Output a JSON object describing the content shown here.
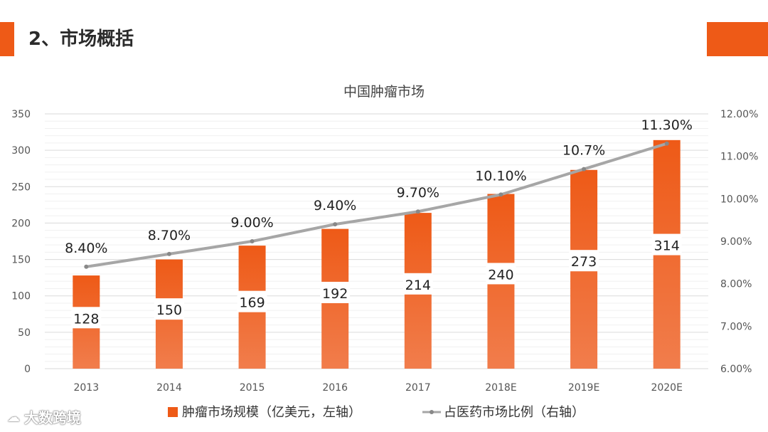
{
  "slide": {
    "title": "2、市场概括"
  },
  "watermark": {
    "icon": "cloud-logo-icon",
    "text": "大数跨境"
  },
  "colors": {
    "accent": "#ee5a17",
    "bar_top": "#ee5a17",
    "bar_bottom": "#f17d4c",
    "line": "#a6a6a6",
    "grid": "#e3e3e3"
  },
  "chart_data": {
    "type": "bar",
    "title": "中国肿瘤市场",
    "categories": [
      "2013",
      "2014",
      "2015",
      "2016",
      "2017",
      "2018E",
      "2019E",
      "2020E"
    ],
    "series": [
      {
        "name": "肿瘤市场规模（亿美元，左轴）",
        "type": "bar",
        "axis": "left",
        "values": [
          128,
          150,
          169,
          192,
          214,
          240,
          273,
          314
        ],
        "labels": [
          "128",
          "150",
          "169",
          "192",
          "214",
          "240",
          "273",
          "314"
        ]
      },
      {
        "name": "占医药市场比例（右轴）",
        "type": "line",
        "axis": "right",
        "values": [
          8.4,
          8.7,
          9.0,
          9.4,
          9.7,
          10.1,
          10.7,
          11.3
        ],
        "labels": [
          "8.40%",
          "8.70%",
          "9.00%",
          "9.40%",
          "9.70%",
          "10.10%",
          "10.7%",
          "11.30%"
        ]
      }
    ],
    "y_left": {
      "min": 0,
      "max": 350,
      "ticks": [
        "0",
        "50",
        "100",
        "150",
        "200",
        "250",
        "300",
        "350"
      ]
    },
    "y_right": {
      "min": 6,
      "max": 12,
      "ticks": [
        "6.00%",
        "7.00%",
        "8.00%",
        "9.00%",
        "10.00%",
        "11.00%",
        "12.00%"
      ]
    },
    "grid": true,
    "legend_position": "bottom"
  }
}
